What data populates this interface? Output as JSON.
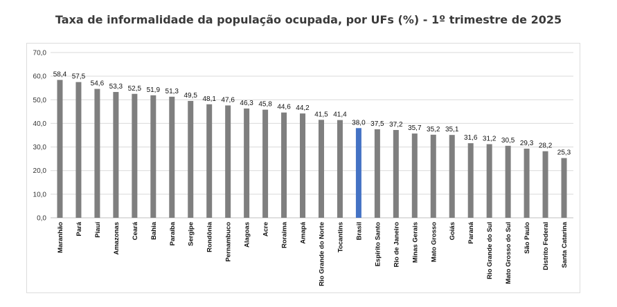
{
  "chart_data": {
    "type": "bar",
    "title": "Taxa de informalidade da população ocupada, por UFs (%) - 1º trimestre de 2025",
    "xlabel": "",
    "ylabel": "",
    "ylim": [
      0,
      70
    ],
    "yticks": [
      "0,0",
      "10,0",
      "20,0",
      "30,0",
      "40,0",
      "50,0",
      "60,0",
      "70,0"
    ],
    "grid": true,
    "categories": [
      "Maranhão",
      "Pará",
      "Piauí",
      "Amazonas",
      "Ceará",
      "Bahia",
      "Paraíba",
      "Sergipe",
      "Rondônia",
      "Pernambuco",
      "Alagoas",
      "Acre",
      "Roraima",
      "Amapá",
      "Rio Grande do Norte",
      "Tocantins",
      "Brasil",
      "Espírito Santo",
      "Rio de Janeiro",
      "Minas Gerais",
      "Mato Grosso",
      "Goiás",
      "Paraná",
      "Rio Grande do Sul",
      "Mato Grosso do Sul",
      "São Paulo",
      "Distrito Federal",
      "Santa Catarina"
    ],
    "values": [
      58.4,
      57.5,
      54.6,
      53.3,
      52.5,
      51.9,
      51.3,
      49.5,
      48.1,
      47.6,
      46.3,
      45.8,
      44.6,
      44.2,
      41.5,
      41.4,
      38.0,
      37.5,
      37.2,
      35.7,
      35.2,
      35.1,
      31.6,
      31.2,
      30.5,
      29.3,
      28.2,
      25.3
    ],
    "value_labels": [
      "58,4",
      "57,5",
      "54,6",
      "53,3",
      "52,5",
      "51,9",
      "51,3",
      "49,5",
      "48,1",
      "47,6",
      "46,3",
      "45,8",
      "44,6",
      "44,2",
      "41,5",
      "41,4",
      "38,0",
      "37,5",
      "37,2",
      "35,7",
      "35,2",
      "35,1",
      "31,6",
      "31,2",
      "30,5",
      "29,3",
      "28,2",
      "25,3"
    ],
    "highlight_category": "Brasil",
    "colors": {
      "bar": "#7f7f7f",
      "highlight": "#4472c4",
      "grid": "#d9d9d9",
      "axis": "#bfbfbf"
    }
  }
}
